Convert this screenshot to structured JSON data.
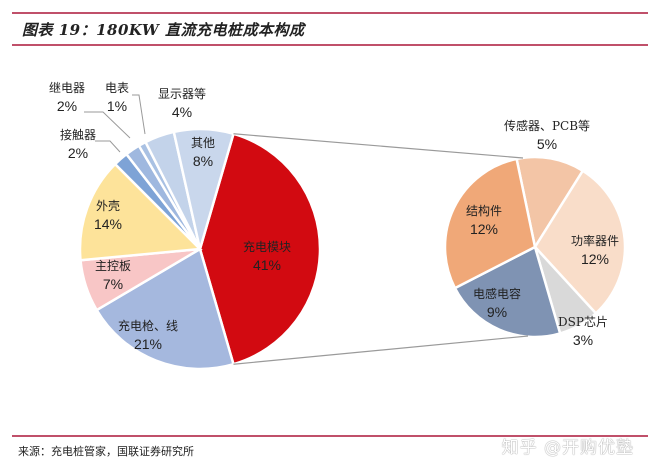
{
  "header": {
    "title": "图表 19：180KW 直流充电桩成本构成"
  },
  "footer": {
    "source": "来源：充电桩管家，国联证券研究所",
    "watermark": "知乎 @开购优塾"
  },
  "colors": {
    "rule": "#c0506a"
  },
  "chart_data": [
    {
      "type": "pie",
      "title": "180KW 直流充电桩成本构成",
      "categories": [
        "充电模块",
        "其他",
        "显示器等",
        "电表",
        "继电器",
        "接触器",
        "外壳",
        "主控板",
        "充电枪、线"
      ],
      "values": [
        41,
        8,
        4,
        1,
        2,
        2,
        14,
        7,
        21
      ],
      "labels": [
        "41%",
        "8%",
        "4%",
        "1%",
        "2%",
        "2%",
        "14%",
        "7%",
        "21%"
      ],
      "colors": [
        "#d20a11",
        "#c9d7ec",
        "#c3d3ea",
        "#a9c1e3",
        "#9fb8df",
        "#7ea3d6",
        "#fde39a",
        "#f8c6c6",
        "#a5b8de"
      ],
      "unit": "%"
    },
    {
      "type": "pie",
      "title": "充电模块成本构成 (bar-of-pie breakout of 41%)",
      "parent": "充电模块",
      "categories": [
        "传感器、PCB等",
        "功率器件",
        "DSP芯片",
        "电感电容",
        "结构件"
      ],
      "values": [
        5,
        12,
        3,
        9,
        12
      ],
      "labels": [
        "5%",
        "12%",
        "3%",
        "9%",
        "12%"
      ],
      "colors": [
        "#f3c5a6",
        "#f9ddc9",
        "#d9d9d9",
        "#7f93b3",
        "#f0a878"
      ],
      "unit": "%"
    }
  ],
  "labels": {
    "main": [
      {
        "name": "充电模块",
        "pct": "41%"
      },
      {
        "name": "其他",
        "pct": "8%"
      },
      {
        "name": "显示器等",
        "pct": "4%"
      },
      {
        "name": "电表",
        "pct": "1%"
      },
      {
        "name": "继电器",
        "pct": "2%"
      },
      {
        "name": "接触器",
        "pct": "2%"
      },
      {
        "name": "外壳",
        "pct": "14%"
      },
      {
        "name": "主控板",
        "pct": "7%"
      },
      {
        "name": "充电枪、线",
        "pct": "21%"
      }
    ],
    "sub": [
      {
        "name": "传感器、PCB等",
        "pct": "5%"
      },
      {
        "name": "功率器件",
        "pct": "12%"
      },
      {
        "name": "DSP芯片",
        "pct": "3%"
      },
      {
        "name": "电感电容",
        "pct": "9%"
      },
      {
        "name": "结构件",
        "pct": "12%"
      }
    ]
  }
}
